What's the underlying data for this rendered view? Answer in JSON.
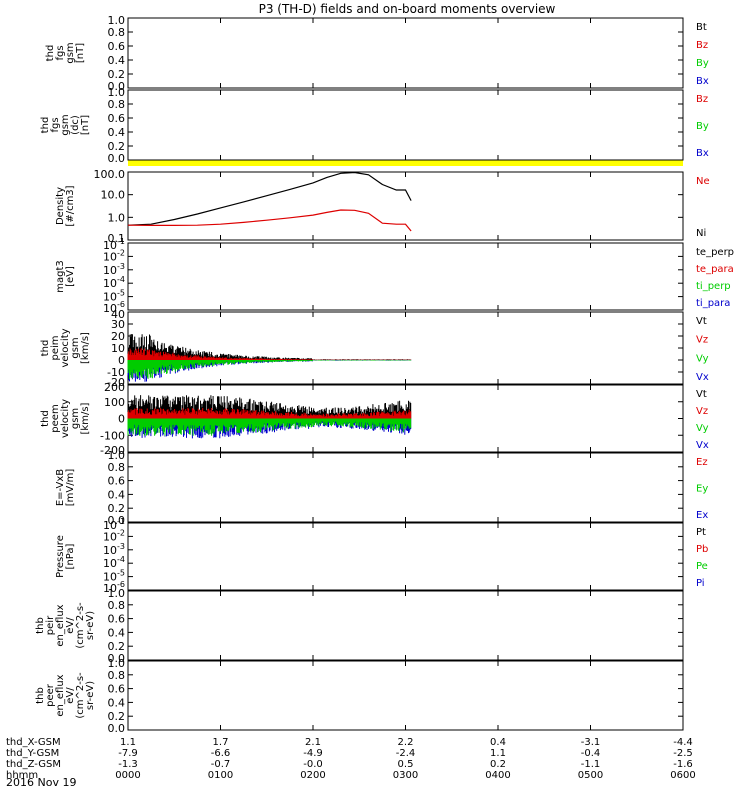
{
  "title": "P3 (TH-D) fields and on-board moments overview",
  "date_label": "2016 Nov 19",
  "colors": {
    "black": "#000000",
    "red": "#dd0000",
    "green": "#00cc00",
    "blue": "#0000cc",
    "yellow": "#ffff00"
  },
  "chart_data": {
    "type": "line",
    "x_axis": {
      "rows": [
        {
          "name": "thd_X-GSM",
          "values": [
            "1.1",
            "1.7",
            "2.1",
            "2.2",
            "0.4",
            "-3.1",
            "-4.4"
          ]
        },
        {
          "name": "thd_Y-GSM",
          "values": [
            "-7.9",
            "-6.6",
            "-4.9",
            "-2.4",
            "1.1",
            "-0.4",
            "-2.5"
          ]
        },
        {
          "name": "thd_Z-GSM",
          "values": [
            "-1.3",
            "-0.7",
            "-0.0",
            "0.5",
            "0.2",
            "-1.1",
            "-1.6"
          ]
        },
        {
          "name": "hhmm",
          "values": [
            "0000",
            "0100",
            "0200",
            "0300",
            "0400",
            "0500",
            "0600"
          ]
        }
      ]
    },
    "panels": [
      {
        "id": "fgs_gsm",
        "ylabel": [
          "thd",
          "fgs",
          "gsm",
          "[nT]"
        ],
        "ticks": [
          "1.0",
          "0.8",
          "0.6",
          "0.4",
          "0.2",
          "0.0"
        ],
        "legend": [
          {
            "text": "Bt",
            "color": "black"
          },
          {
            "text": "Bz",
            "color": "red"
          },
          {
            "text": "By",
            "color": "green"
          },
          {
            "text": "Bx",
            "color": "blue"
          }
        ]
      },
      {
        "id": "fgs_gsm_dc",
        "ylabel": [
          "thd",
          "fgs",
          "gsm",
          "(dc)",
          "[nT]"
        ],
        "ticks": [
          "1.0",
          "0.8",
          "0.6",
          "0.4",
          "0.2",
          "0.0"
        ],
        "legend": [
          {
            "text": "Bz",
            "color": "red"
          },
          {
            "text": "By",
            "color": "green"
          },
          {
            "text": "Bx",
            "color": "blue"
          }
        ]
      },
      {
        "id": "density",
        "ylabel": [
          "Density",
          "[#/cm3]"
        ],
        "ticks": [
          "100.0",
          "10.0",
          "1.0",
          "0.1"
        ],
        "ylim": [
          0.1,
          100
        ],
        "scale": "log",
        "legend": [
          {
            "text": "Ne",
            "color": "red"
          },
          {
            "text": "Ni",
            "color": "black"
          }
        ],
        "series": [
          {
            "name": "Ni",
            "color": "black",
            "x": [
              0.0,
              0.25,
              0.5,
              0.75,
              1.0,
              1.25,
              1.5,
              1.75,
              2.0,
              2.15,
              2.3,
              2.45,
              2.6,
              2.75,
              2.9,
              3.0,
              3.06
            ],
            "y": [
              0.45,
              0.5,
              0.8,
              1.4,
              2.6,
              4.8,
              9,
              17,
              33,
              58,
              88,
              95,
              75,
              28,
              16,
              16,
              5.5
            ]
          },
          {
            "name": "Ne",
            "color": "red",
            "x": [
              0.0,
              0.25,
              0.5,
              0.75,
              1.0,
              1.25,
              1.5,
              1.75,
              2.0,
              2.15,
              2.3,
              2.45,
              2.6,
              2.75,
              2.9,
              3.0,
              3.06
            ],
            "y": [
              0.45,
              0.44,
              0.44,
              0.45,
              0.5,
              0.6,
              0.75,
              0.95,
              1.25,
              1.65,
              2.1,
              2.05,
              1.5,
              0.55,
              0.5,
              0.5,
              0.25
            ]
          }
        ]
      },
      {
        "id": "mom_t",
        "ylabel": [
          "magt3",
          "[eV]"
        ],
        "ticks": [
          "10-1",
          "10-2",
          "10-3",
          "10-4",
          "10-5",
          "10-6"
        ],
        "legend": [
          {
            "text": "te_perp",
            "color": "black"
          },
          {
            "text": "te_para",
            "color": "red"
          },
          {
            "text": "ti_perp",
            "color": "green"
          },
          {
            "text": "ti_para",
            "color": "blue"
          }
        ]
      },
      {
        "id": "peim_velocity",
        "ylabel": [
          "thd",
          "peim",
          "velocity",
          "gsm",
          "[km/s]"
        ],
        "ticks": [
          "40",
          "30",
          "20",
          "10",
          "0",
          "-10",
          "-20"
        ],
        "ylim": [
          -20,
          40
        ],
        "legend": [
          {
            "text": "Vt",
            "color": "black"
          },
          {
            "text": "Vz",
            "color": "red"
          },
          {
            "text": "Vy",
            "color": "green"
          },
          {
            "text": "Vx",
            "color": "blue"
          }
        ]
      },
      {
        "id": "peem_velocity",
        "ylabel": [
          "thd",
          "peem",
          "velocity",
          "gsm",
          "[km/s]"
        ],
        "ticks": [
          "200",
          "100",
          "0",
          "-100",
          "-200"
        ],
        "ylim": [
          -200,
          200
        ],
        "legend": [
          {
            "text": "Vt",
            "color": "black"
          },
          {
            "text": "Vz",
            "color": "red"
          },
          {
            "text": "Vy",
            "color": "green"
          },
          {
            "text": "Vx",
            "color": "blue"
          }
        ]
      },
      {
        "id": "efield",
        "ylabel": [
          "E=-VxB",
          "[mV/m]"
        ],
        "ticks": [
          "1.0",
          "0.8",
          "0.6",
          "0.4",
          "0.2",
          "0.0"
        ],
        "legend": [
          {
            "text": "Ez",
            "color": "red"
          },
          {
            "text": "Ey",
            "color": "green"
          },
          {
            "text": "Ex",
            "color": "blue"
          }
        ]
      },
      {
        "id": "pressure",
        "ylabel": [
          "Pressure",
          "[nPa]"
        ],
        "ticks": [
          "10-1",
          "10-2",
          "10-3",
          "10-4",
          "10-5",
          "10-6"
        ],
        "legend": [
          {
            "text": "Pt",
            "color": "black"
          },
          {
            "text": "Pb",
            "color": "red"
          },
          {
            "text": "Pe",
            "color": "green"
          },
          {
            "text": "Pi",
            "color": "blue"
          }
        ]
      },
      {
        "id": "peir_enflux",
        "ylabel": [
          "thb",
          "peir",
          "en_eflux",
          "eV/",
          "(cm^2-s-",
          "sr-eV)"
        ],
        "ticks": [
          "1.0",
          "0.8",
          "0.6",
          "0.4",
          "0.2",
          "0.0"
        ],
        "legend": []
      },
      {
        "id": "peer_enflux",
        "ylabel": [
          "thb",
          "peer",
          "en_eflux",
          "eV/",
          "(cm^2-s-",
          "sr-eV)"
        ],
        "ticks": [
          "1.0",
          "0.8",
          "0.6",
          "0.4",
          "0.2",
          "0.0"
        ],
        "legend": []
      }
    ]
  }
}
